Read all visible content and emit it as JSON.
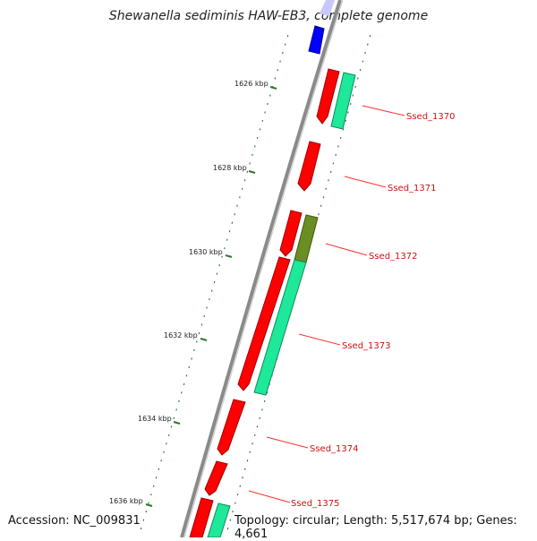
{
  "title": "Shewanella sediminis HAW-EB3, complete genome",
  "footer": {
    "accession": "Accession: NC_009831",
    "summary": "Topology: circular; Length: 5,517,674 bp; Genes: 4,661"
  },
  "ticks": [
    {
      "label": "1626 kbp"
    },
    {
      "label": "1628 kbp"
    },
    {
      "label": "1630 kbp"
    },
    {
      "label": "1632 kbp"
    },
    {
      "label": "1634 kbp"
    },
    {
      "label": "1636 kbp"
    }
  ],
  "gene_labels": [
    "Ssed_1370",
    "Ssed_1371",
    "Ssed_1372",
    "Ssed_1373",
    "Ssed_1374",
    "Ssed_1375"
  ],
  "colors": {
    "backbone": "#8a8a8a",
    "forward_feature": "#ff0000",
    "other_feature": "#0000ff",
    "analysis_feature": "#1ee89a",
    "dim_feature": "#6b8e23",
    "tick": "#2a7a2a",
    "label_line": "#ff3030"
  }
}
